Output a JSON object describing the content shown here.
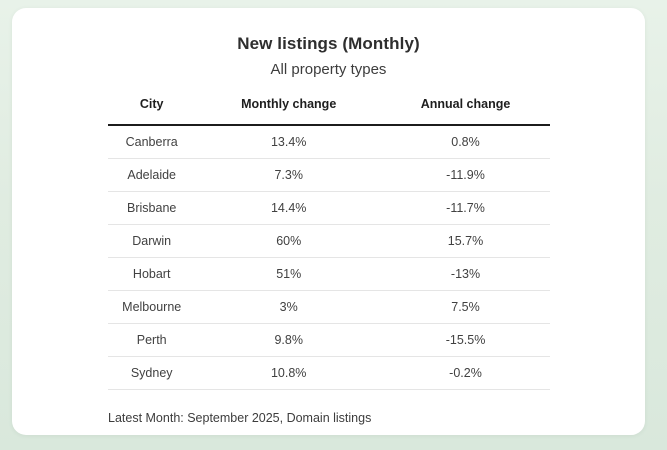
{
  "colors": {
    "page_background_top": "#e8f2e9",
    "page_background_bottom": "#d9e8dc",
    "card_background": "#ffffff",
    "title_text": "#2e2e2e",
    "body_text": "#414141",
    "header_rule": "#1c1c1c",
    "row_divider": "#e5e5e5"
  },
  "header": {
    "title": "New listings (Monthly)",
    "subtitle": "All property types"
  },
  "table": {
    "columns": [
      "City",
      "Monthly change",
      "Annual change"
    ],
    "rows": [
      {
        "city": "Canberra",
        "monthly": "13.4%",
        "annual": "0.8%"
      },
      {
        "city": "Adelaide",
        "monthly": "7.3%",
        "annual": "-11.9%"
      },
      {
        "city": "Brisbane",
        "monthly": "14.4%",
        "annual": "-11.7%"
      },
      {
        "city": "Darwin",
        "monthly": "60%",
        "annual": "15.7%"
      },
      {
        "city": "Hobart",
        "monthly": "51%",
        "annual": "-13%"
      },
      {
        "city": "Melbourne",
        "monthly": "3%",
        "annual": "7.5%"
      },
      {
        "city": "Perth",
        "monthly": "9.8%",
        "annual": "-15.5%"
      },
      {
        "city": "Sydney",
        "monthly": "10.8%",
        "annual": "-0.2%"
      }
    ]
  },
  "footer": {
    "note": "Latest Month: September 2025, Domain listings"
  },
  "chart_data": {
    "type": "table",
    "title": "New listings (Monthly)",
    "subtitle": "All property types",
    "columns": [
      "City",
      "Monthly change",
      "Annual change"
    ],
    "rows": [
      [
        "Canberra",
        "13.4%",
        "0.8%"
      ],
      [
        "Adelaide",
        "7.3%",
        "-11.9%"
      ],
      [
        "Brisbane",
        "14.4%",
        "-11.7%"
      ],
      [
        "Darwin",
        "60%",
        "15.7%"
      ],
      [
        "Hobart",
        "51%",
        "-13%"
      ],
      [
        "Melbourne",
        "3%",
        "7.5%"
      ],
      [
        "Perth",
        "9.8%",
        "-15.5%"
      ],
      [
        "Sydney",
        "10.8%",
        "-0.2%"
      ]
    ],
    "note": "Latest Month: September 2025, Domain listings"
  }
}
